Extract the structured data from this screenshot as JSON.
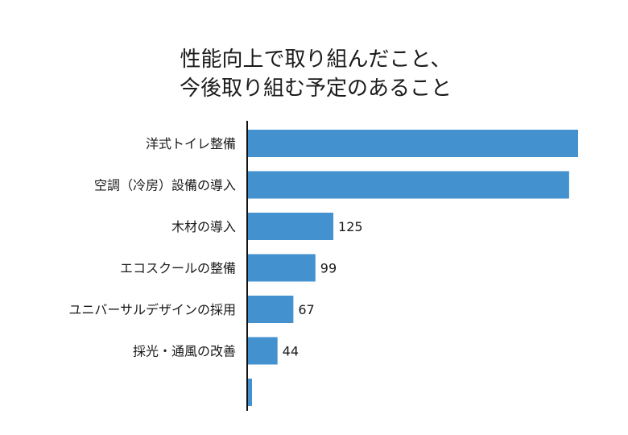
{
  "chart_data": {
    "type": "bar",
    "orientation": "horizontal",
    "title_lines": [
      "性能向上で取り組んだこと、",
      "今後取り組む予定のあること"
    ],
    "categories": [
      "洋式トイレ整備",
      "空調（冷房）設備の導入",
      "木材の導入",
      "エコスクールの整備",
      "ユニバーサルデザインの採用",
      "採光・通風の改善",
      ""
    ],
    "values": [
      480,
      467,
      125,
      99,
      67,
      44,
      7
    ],
    "data_labels": [
      "",
      "",
      "125",
      "99",
      "67",
      "44",
      ""
    ],
    "xlim": [
      0,
      480
    ],
    "bar_color": "#4391cf",
    "axis_color": "#111111",
    "grid": false,
    "legend": "none"
  }
}
